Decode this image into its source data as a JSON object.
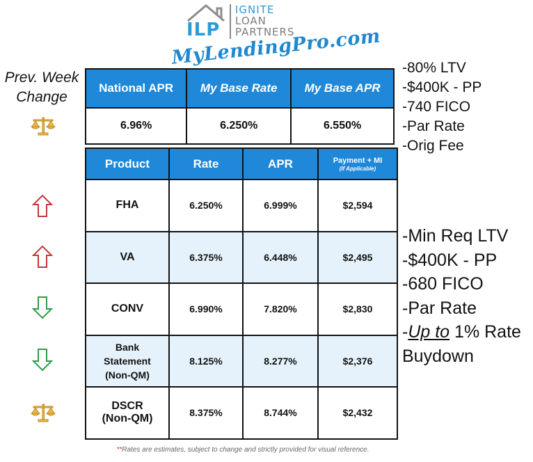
{
  "logo": {
    "letters": "ILP",
    "line1": "IGNITE",
    "line2": "LOAN",
    "line3": "PARTNERS",
    "script": "MyLendingPro.com"
  },
  "prev_week": {
    "line1": "Prev. Week",
    "line2": "Change"
  },
  "notes_top": [
    "-80% LTV",
    "-$400K - PP",
    "-740 FICO",
    "-Par Rate",
    "-Orig Fee"
  ],
  "notes_mid": {
    "lines": [
      "-Min Req LTV",
      "-$400K - PP",
      "-680 FICO",
      "-Par Rate"
    ],
    "last_prefix": "-",
    "last_underlined": "Up to",
    "last_suffix": " 1% Rate",
    "final": "Buydown"
  },
  "national_table": {
    "headers": [
      "National APR",
      "My Base Rate",
      "My Base APR"
    ],
    "values": [
      "6.96%",
      "6.250%",
      "6.550%"
    ],
    "indicator": "scale"
  },
  "product_table": {
    "headers": {
      "product": "Product",
      "rate": "Rate",
      "apr": "APR",
      "payment": "Payment + MI",
      "payment_note": "(If Applicable)"
    },
    "rows": [
      {
        "product": "FHA",
        "rate": "6.250%",
        "apr": "6.999%",
        "payment": "$2,594",
        "change": "up"
      },
      {
        "product": "VA",
        "rate": "6.375%",
        "apr": "6.448%",
        "payment": "$2,495",
        "change": "up"
      },
      {
        "product": "CONV",
        "rate": "6.990%",
        "apr": "7.820%",
        "payment": "$2,830",
        "change": "down"
      },
      {
        "product_lines": [
          "Bank",
          "Statement",
          "(Non-QM)"
        ],
        "rate": "8.125%",
        "apr": "8.277%",
        "payment": "$2,376",
        "change": "down"
      },
      {
        "product_lines": [
          "DSCR",
          "(Non-QM)"
        ],
        "rate": "8.375%",
        "apr": "8.744%",
        "payment": "$2,432",
        "change": "scale"
      }
    ]
  },
  "footnote": {
    "asterisks": "**",
    "text": "Rates are estimates, subject to change and strictly provided for visual reference."
  },
  "colors": {
    "header_blue": "#1f88d8",
    "up_red": "#c0393b",
    "down_green": "#2e9b48",
    "alt_row": "#e6f2fb"
  }
}
